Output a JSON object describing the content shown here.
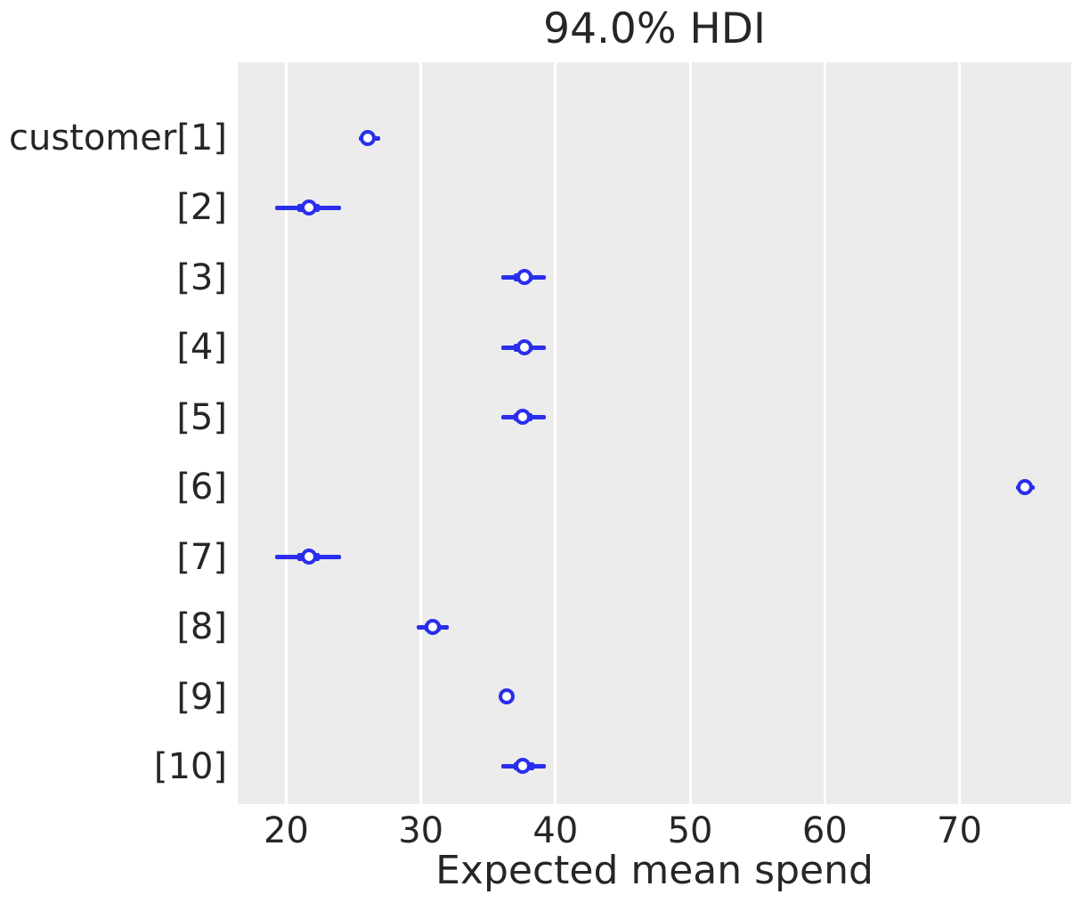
{
  "title": "94.0% HDI",
  "xlabel": "Expected mean spend",
  "chart_data": {
    "type": "forest",
    "title": "94.0% HDI",
    "subtitle": "",
    "xlabel": "Expected mean spend",
    "ylabel": "",
    "hdi_probability": "94.0%",
    "xlim": [
      16.4,
      78.3
    ],
    "xticks": [
      20,
      30,
      40,
      50,
      60,
      70
    ],
    "grid": "vertical white gridlines on gray panel",
    "legend_position": "none",
    "rows": [
      {
        "label": "customer[1]",
        "median": 26.1,
        "hdi": [
          25.4,
          27.0
        ],
        "quartile": [
          25.7,
          26.5
        ]
      },
      {
        "label": "[2]",
        "median": 21.7,
        "hdi": [
          19.2,
          24.1
        ],
        "quartile": [
          20.8,
          22.5
        ]
      },
      {
        "label": "[3]",
        "median": 37.7,
        "hdi": [
          36.0,
          39.3
        ],
        "quartile": [
          36.9,
          38.3
        ]
      },
      {
        "label": "[4]",
        "median": 37.7,
        "hdi": [
          36.0,
          39.3
        ],
        "quartile": [
          36.9,
          38.3
        ]
      },
      {
        "label": "[5]",
        "median": 37.6,
        "hdi": [
          36.0,
          39.3
        ],
        "quartile": [
          36.9,
          38.3
        ]
      },
      {
        "label": "[6]",
        "median": 74.9,
        "hdi": [
          74.2,
          75.6
        ],
        "quartile": [
          74.5,
          75.2
        ]
      },
      {
        "label": "[7]",
        "median": 21.7,
        "hdi": [
          19.2,
          24.1
        ],
        "quartile": [
          20.8,
          22.5
        ]
      },
      {
        "label": "[8]",
        "median": 30.9,
        "hdi": [
          29.7,
          32.1
        ],
        "quartile": [
          30.3,
          31.5
        ]
      },
      {
        "label": "[9]",
        "median": 36.4,
        "hdi": [
          36.1,
          36.7
        ],
        "quartile": [
          36.2,
          36.6
        ]
      },
      {
        "label": "[10]",
        "median": 37.6,
        "hdi": [
          36.0,
          39.3
        ],
        "quartile": [
          36.9,
          38.4
        ]
      }
    ],
    "colors": {
      "interval": "#2a2eec",
      "marker_face": "#ffffff",
      "panel_background": "#ececec",
      "gridline": "#ffffff",
      "text": "#262626",
      "page_background": "#ffffff"
    }
  }
}
